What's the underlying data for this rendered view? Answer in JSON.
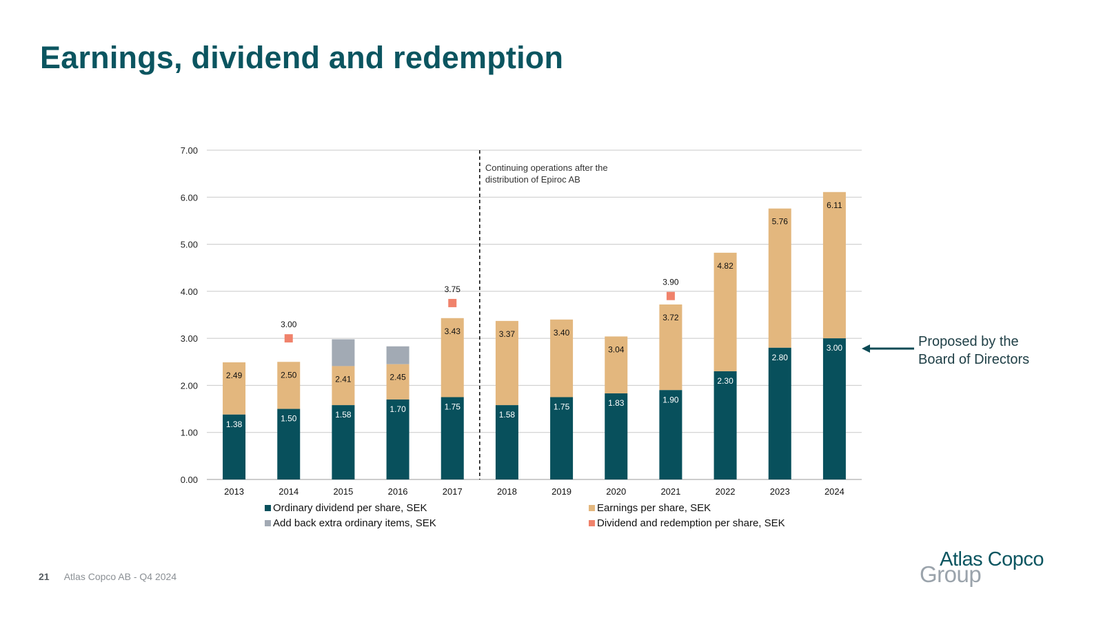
{
  "slide": {
    "title": "Earnings, dividend and redemption",
    "annotation_line1": "Proposed by the",
    "annotation_line2": "Board of Directors",
    "page_number": "21",
    "footer_text": "Atlas Copco AB - Q4 2024",
    "logo_line1": "Atlas Copco",
    "logo_line2": "Group"
  },
  "colors": {
    "ordinary": "#08505c",
    "earnings": "#e3b77e",
    "addback": "#a2aab4",
    "redemption": "#f0826b",
    "title": "#0b5560"
  },
  "chart_data": {
    "type": "bar",
    "categories": [
      "2013",
      "2014",
      "2015",
      "2016",
      "2017",
      "2018",
      "2019",
      "2020",
      "2021",
      "2022",
      "2023",
      "2024"
    ],
    "ylim": [
      0,
      7
    ],
    "yticks": [
      "0.00",
      "1.00",
      "2.00",
      "3.00",
      "4.00",
      "5.00",
      "6.00",
      "7.00"
    ],
    "series": [
      {
        "name": "Ordinary dividend per share, SEK",
        "key": "ordinary",
        "values": [
          1.38,
          1.5,
          1.58,
          1.7,
          1.75,
          1.58,
          1.75,
          1.83,
          1.9,
          2.3,
          2.8,
          3.0
        ],
        "labels": [
          "1.38",
          "1.50",
          "1.58",
          "1.70",
          "1.75",
          "1.58",
          "1.75",
          "1.83",
          "1.90",
          "2.30",
          "2.80",
          "3.00"
        ]
      },
      {
        "name": "Earnings per share, SEK",
        "key": "earnings",
        "values": [
          2.49,
          2.5,
          2.41,
          2.45,
          3.43,
          3.37,
          3.4,
          3.04,
          3.72,
          4.82,
          5.76,
          6.11
        ],
        "labels": [
          "2.49",
          "2.50",
          "2.41",
          "2.45",
          "3.43",
          "3.37",
          "3.40",
          "3.04",
          "3.72",
          "4.82",
          "5.76",
          "6.11"
        ]
      },
      {
        "name": "Add back extra ordinary items, SEK",
        "key": "addback",
        "values": [
          null,
          null,
          2.98,
          2.83,
          null,
          null,
          null,
          null,
          null,
          null,
          null,
          null
        ]
      },
      {
        "name": "Dividend and redemption per share, SEK",
        "key": "redemption",
        "values": [
          null,
          3.0,
          null,
          null,
          3.75,
          null,
          null,
          null,
          3.9,
          null,
          null,
          null
        ],
        "labels": [
          null,
          "3.00",
          null,
          null,
          "3.75",
          null,
          null,
          null,
          "3.90",
          null,
          null,
          null
        ]
      }
    ],
    "divider_after": "2017",
    "divider_note_line1": "Continuing operations after the",
    "divider_note_line2": "distribution of Epiroc AB",
    "legend": [
      {
        "key": "ordinary",
        "label": "Ordinary dividend per share, SEK"
      },
      {
        "key": "earnings",
        "label": "Earnings per share, SEK"
      },
      {
        "key": "addback",
        "label": "Add back extra ordinary items, SEK"
      },
      {
        "key": "redemption",
        "label": "Dividend and redemption per share, SEK"
      }
    ]
  }
}
